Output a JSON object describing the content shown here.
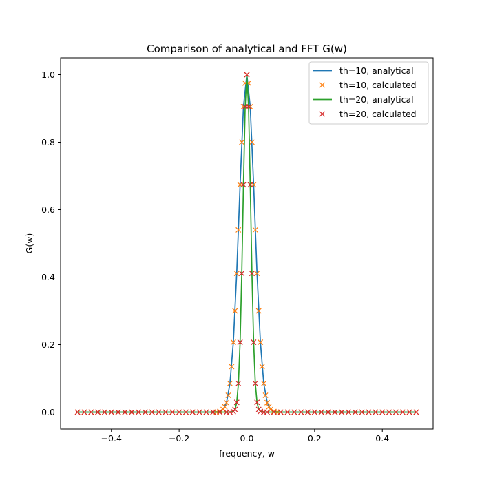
{
  "chart_data": {
    "type": "line",
    "title": "Comparison of analytical and FFT G(w)",
    "xlabel": "frequency, w",
    "ylabel": "G(w)",
    "xlim": [
      -0.55,
      0.55
    ],
    "ylim": [
      -0.05,
      1.05
    ],
    "xticks": [
      -0.4,
      -0.2,
      0.0,
      0.2,
      0.4
    ],
    "xtick_labels": [
      "−0.4",
      "−0.2",
      "0.0",
      "0.2",
      "0.4"
    ],
    "yticks": [
      0.0,
      0.2,
      0.4,
      0.6,
      0.8,
      1.0
    ],
    "ytick_labels": [
      "0.0",
      "0.2",
      "0.4",
      "0.6",
      "0.8",
      "1.0"
    ],
    "grid": false,
    "legend_position": "top-right",
    "series": [
      {
        "name": "th=10, analytical",
        "style": "line",
        "color": "#1f77b4",
        "x": [
          -0.5,
          -0.1,
          -0.08,
          -0.07,
          -0.06,
          -0.05,
          -0.04,
          -0.03,
          -0.02,
          -0.01,
          0.0,
          0.01,
          0.02,
          0.03,
          0.04,
          0.05,
          0.06,
          0.07,
          0.08,
          0.1,
          0.5
        ],
        "y": [
          0.0,
          0.0,
          0.0018,
          0.0079,
          0.0285,
          0.0845,
          0.2066,
          0.4114,
          0.6738,
          0.9048,
          1.0,
          0.9048,
          0.6738,
          0.4114,
          0.2066,
          0.0845,
          0.0285,
          0.0079,
          0.0018,
          0.0,
          0.0
        ]
      },
      {
        "name": "th=10, calculated",
        "style": "x-marker",
        "color": "#ff7f0e",
        "x": [
          -0.5,
          -0.48,
          -0.46,
          -0.44,
          -0.42,
          -0.4,
          -0.38,
          -0.36,
          -0.34,
          -0.32,
          -0.3,
          -0.28,
          -0.26,
          -0.24,
          -0.22,
          -0.2,
          -0.18,
          -0.16,
          -0.14,
          -0.12,
          -0.1,
          -0.09,
          -0.08,
          -0.07,
          -0.065,
          -0.06,
          -0.055,
          -0.05,
          -0.045,
          -0.04,
          -0.035,
          -0.03,
          -0.025,
          -0.02,
          -0.015,
          -0.01,
          -0.005,
          0.0,
          0.005,
          0.01,
          0.015,
          0.02,
          0.025,
          0.03,
          0.035,
          0.04,
          0.045,
          0.05,
          0.055,
          0.06,
          0.065,
          0.07,
          0.08,
          0.09,
          0.1,
          0.12,
          0.14,
          0.16,
          0.18,
          0.2,
          0.22,
          0.24,
          0.26,
          0.28,
          0.3,
          0.32,
          0.34,
          0.36,
          0.38,
          0.4,
          0.42,
          0.44,
          0.46,
          0.48,
          0.5
        ],
        "y": [
          0.0,
          0.0,
          0.0,
          0.0,
          0.0,
          0.0,
          0.0,
          0.0,
          0.0,
          0.0,
          0.0,
          0.0,
          0.0,
          0.0,
          0.0,
          0.0,
          0.0,
          0.0,
          0.0,
          0.0,
          0.0,
          0.0,
          0.002,
          0.008,
          0.016,
          0.028,
          0.05,
          0.085,
          0.135,
          0.207,
          0.3,
          0.411,
          0.54,
          0.674,
          0.8,
          0.905,
          0.975,
          1.0,
          0.975,
          0.905,
          0.8,
          0.674,
          0.54,
          0.411,
          0.3,
          0.207,
          0.135,
          0.085,
          0.05,
          0.028,
          0.016,
          0.008,
          0.002,
          0.0,
          0.0,
          0.0,
          0.0,
          0.0,
          0.0,
          0.0,
          0.0,
          0.0,
          0.0,
          0.0,
          0.0,
          0.0,
          0.0,
          0.0,
          0.0,
          0.0,
          0.0,
          0.0,
          0.0,
          0.0,
          0.0
        ]
      },
      {
        "name": "th=20, analytical",
        "style": "line",
        "color": "#2ca02c",
        "x": [
          -0.5,
          -0.05,
          -0.04,
          -0.035,
          -0.03,
          -0.025,
          -0.02,
          -0.015,
          -0.01,
          -0.005,
          0.0,
          0.005,
          0.01,
          0.015,
          0.02,
          0.025,
          0.03,
          0.035,
          0.04,
          0.05,
          0.5
        ],
        "y": [
          0.0,
          0.0,
          0.0018,
          0.0079,
          0.0285,
          0.0845,
          0.2066,
          0.4114,
          0.6738,
          0.9048,
          1.0,
          0.9048,
          0.6738,
          0.4114,
          0.2066,
          0.0845,
          0.0285,
          0.0079,
          0.0018,
          0.0,
          0.0
        ]
      },
      {
        "name": "th=20, calculated",
        "style": "x-marker",
        "color": "#d62728",
        "x": [
          -0.5,
          -0.48,
          -0.46,
          -0.44,
          -0.42,
          -0.4,
          -0.38,
          -0.36,
          -0.34,
          -0.32,
          -0.3,
          -0.28,
          -0.26,
          -0.24,
          -0.22,
          -0.2,
          -0.18,
          -0.16,
          -0.14,
          -0.12,
          -0.1,
          -0.08,
          -0.06,
          -0.05,
          -0.04,
          -0.035,
          -0.03,
          -0.025,
          -0.02,
          -0.015,
          -0.01,
          -0.005,
          0.0,
          0.005,
          0.01,
          0.015,
          0.02,
          0.025,
          0.03,
          0.035,
          0.04,
          0.05,
          0.06,
          0.08,
          0.1,
          0.12,
          0.14,
          0.16,
          0.18,
          0.2,
          0.22,
          0.24,
          0.26,
          0.28,
          0.3,
          0.32,
          0.34,
          0.36,
          0.38,
          0.4,
          0.42,
          0.44,
          0.46,
          0.48,
          0.5
        ],
        "y": [
          0.0,
          0.0,
          0.0,
          0.0,
          0.0,
          0.0,
          0.0,
          0.0,
          0.0,
          0.0,
          0.0,
          0.0,
          0.0,
          0.0,
          0.0,
          0.0,
          0.0,
          0.0,
          0.0,
          0.0,
          0.0,
          0.0,
          0.0,
          0.0,
          0.002,
          0.008,
          0.029,
          0.085,
          0.207,
          0.411,
          0.674,
          0.905,
          1.0,
          0.905,
          0.674,
          0.411,
          0.207,
          0.085,
          0.029,
          0.008,
          0.002,
          0.0,
          0.0,
          0.0,
          0.0,
          0.0,
          0.0,
          0.0,
          0.0,
          0.0,
          0.0,
          0.0,
          0.0,
          0.0,
          0.0,
          0.0,
          0.0,
          0.0,
          0.0,
          0.0,
          0.0,
          0.0,
          0.0,
          0.0,
          0.0
        ]
      }
    ]
  }
}
